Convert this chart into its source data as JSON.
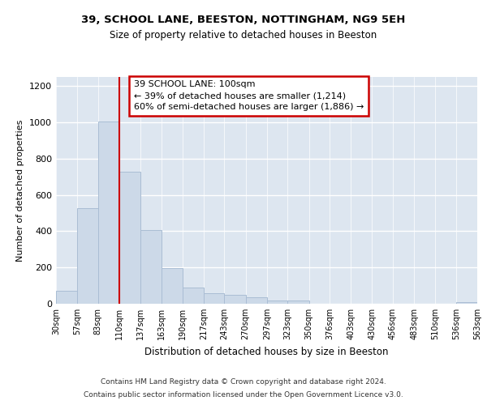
{
  "title1": "39, SCHOOL LANE, BEESTON, NOTTINGHAM, NG9 5EH",
  "title2": "Size of property relative to detached houses in Beeston",
  "xlabel": "Distribution of detached houses by size in Beeston",
  "ylabel": "Number of detached properties",
  "bar_color": "#ccd9e8",
  "bar_edge_color": "#aabdd4",
  "plot_bg_color": "#dde6f0",
  "fig_bg_color": "#ffffff",
  "vline_color": "#cc0000",
  "annotation_text": "39 SCHOOL LANE: 100sqm\n← 39% of detached houses are smaller (1,214)\n60% of semi-detached houses are larger (1,886) →",
  "annotation_box_edge": "#cc0000",
  "bins": [
    30,
    57,
    83,
    110,
    137,
    163,
    190,
    217,
    243,
    270,
    297,
    323,
    350,
    376,
    403,
    430,
    456,
    483,
    510,
    536,
    563
  ],
  "values": [
    70,
    527,
    1003,
    727,
    408,
    197,
    91,
    60,
    47,
    34,
    17,
    20,
    0,
    0,
    0,
    0,
    0,
    0,
    0,
    10
  ],
  "ylim": [
    0,
    1250
  ],
  "yticks": [
    0,
    200,
    400,
    600,
    800,
    1000,
    1200
  ],
  "footer1": "Contains HM Land Registry data © Crown copyright and database right 2024.",
  "footer2": "Contains public sector information licensed under the Open Government Licence v3.0."
}
